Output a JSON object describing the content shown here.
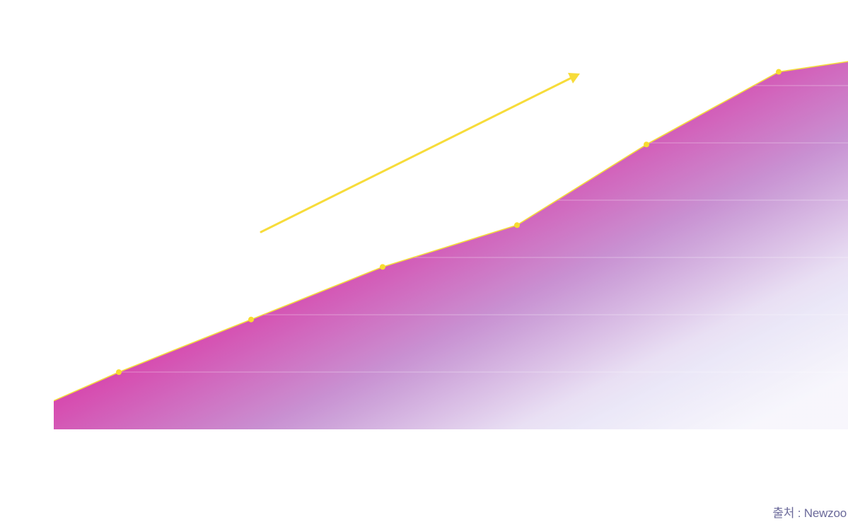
{
  "source_label": "출처 : Newzoo",
  "colors": {
    "area_top": "#e2269c",
    "area_mid": "#c98ccd",
    "area_bottom": "#f8f7fc",
    "line": "#f4dc3c",
    "marker": "#f7dc2e",
    "arrow": "#f7dc3a",
    "grid": "#ffffff",
    "source_text": "#6b6a9a"
  },
  "chart_data": {
    "type": "area",
    "title": "",
    "xlabel": "",
    "ylabel": "",
    "x": [
      0,
      1,
      2,
      3,
      4,
      5,
      6,
      7
    ],
    "series": [
      {
        "values": [
          5.0,
          10.0,
          19.2,
          28.4,
          35.7,
          49.8,
          62.5,
          64.3
        ]
      }
    ],
    "markers_on": [
      1,
      2,
      3,
      4,
      5,
      6
    ],
    "ylim": [
      0,
      64.3
    ],
    "grid": true,
    "legend": "none",
    "trend_arrow": true
  }
}
